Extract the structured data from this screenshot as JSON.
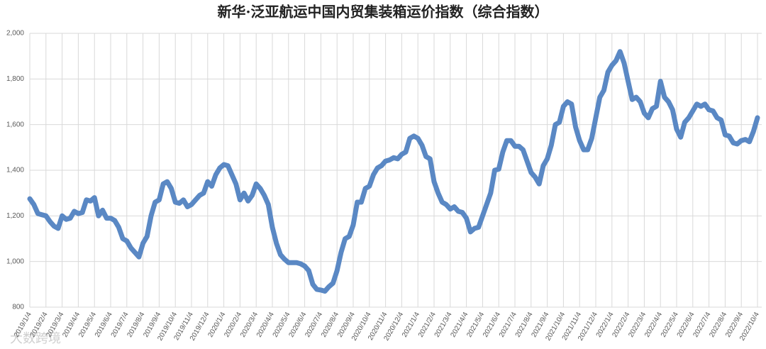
{
  "chart_data": {
    "type": "line",
    "title": "新华·泛亚航运中国内贸集装箱运价指数（综合指数）",
    "watermark": "大数跨境",
    "categories": [
      "2019/1/4",
      null,
      null,
      null,
      "2019/2/4",
      null,
      null,
      null,
      "2019/3/4",
      null,
      null,
      null,
      "2019/4/4",
      null,
      null,
      null,
      "2019/5/4",
      null,
      null,
      null,
      "2019/6/4",
      null,
      null,
      null,
      "2019/7/4",
      null,
      null,
      null,
      "2019/8/4",
      null,
      null,
      null,
      "2019/9/4",
      null,
      null,
      null,
      "2019/10/4",
      null,
      null,
      null,
      "2019/11/4",
      null,
      null,
      null,
      "2019/12/4",
      null,
      null,
      null,
      "2020/1/4",
      null,
      null,
      null,
      "2020/2/4",
      null,
      null,
      null,
      "2020/3/4",
      null,
      null,
      null,
      "2020/4/4",
      null,
      null,
      null,
      "2020/5/4",
      null,
      null,
      null,
      "2020/6/4",
      null,
      null,
      null,
      "2020/7/4",
      null,
      null,
      null,
      "2020/8/4",
      null,
      null,
      null,
      "2020/9/4",
      null,
      null,
      null,
      "2020/10/4",
      null,
      null,
      null,
      "2020/11/4",
      null,
      null,
      null,
      "2020/12/4",
      null,
      null,
      null,
      "2021/1/4",
      null,
      null,
      null,
      "2021/2/4",
      null,
      null,
      null,
      "2021/3/4",
      null,
      null,
      null,
      "2021/4/4",
      null,
      null,
      null,
      "2021/5/4",
      null,
      null,
      null,
      "2021/6/4",
      null,
      null,
      null,
      "2021/7/4",
      null,
      null,
      null,
      "2021/8/4",
      null,
      null,
      null,
      "2021/9/4",
      null,
      null,
      null,
      "2021/10/4",
      null,
      null,
      null,
      "2021/11/4",
      null,
      null,
      null,
      "2021/12/4",
      null,
      null,
      null,
      "2022/1/4",
      null,
      null,
      null,
      "2022/2/4",
      null,
      null,
      null,
      "2022/3/4",
      null,
      null,
      null,
      "2022/4/4",
      null,
      null,
      null,
      "2022/5/4",
      null,
      null,
      null,
      "2022/6/4",
      null,
      null,
      null,
      "2022/7/4",
      null,
      null,
      null,
      "2022/8/4",
      null,
      null,
      null,
      "2022/9/4",
      null,
      null,
      null,
      "2022/10/4"
    ],
    "series": [
      {
        "name": "综合指数",
        "color": "#5a88c4",
        "values": [
          1275,
          1250,
          1210,
          1205,
          1200,
          1175,
          1155,
          1145,
          1200,
          1185,
          1190,
          1220,
          1210,
          1215,
          1270,
          1265,
          1280,
          1200,
          1225,
          1190,
          1190,
          1180,
          1150,
          1100,
          1090,
          1060,
          1040,
          1020,
          1080,
          1110,
          1200,
          1260,
          1270,
          1340,
          1350,
          1320,
          1260,
          1255,
          1270,
          1240,
          1250,
          1270,
          1290,
          1300,
          1350,
          1330,
          1380,
          1410,
          1425,
          1420,
          1380,
          1340,
          1270,
          1300,
          1265,
          1290,
          1340,
          1320,
          1290,
          1250,
          1150,
          1080,
          1030,
          1010,
          995,
          995,
          995,
          990,
          980,
          960,
          900,
          878,
          875,
          870,
          890,
          905,
          960,
          1040,
          1100,
          1110,
          1160,
          1260,
          1260,
          1320,
          1330,
          1380,
          1410,
          1420,
          1440,
          1445,
          1455,
          1450,
          1470,
          1480,
          1540,
          1550,
          1540,
          1510,
          1460,
          1450,
          1350,
          1300,
          1260,
          1250,
          1230,
          1240,
          1220,
          1215,
          1190,
          1130,
          1145,
          1150,
          1200,
          1250,
          1300,
          1400,
          1405,
          1480,
          1530,
          1530,
          1505,
          1505,
          1490,
          1440,
          1390,
          1370,
          1340,
          1420,
          1450,
          1510,
          1600,
          1610,
          1680,
          1700,
          1690,
          1590,
          1530,
          1490,
          1490,
          1540,
          1630,
          1720,
          1750,
          1830,
          1860,
          1880,
          1920,
          1870,
          1790,
          1710,
          1720,
          1700,
          1650,
          1630,
          1670,
          1680,
          1790,
          1720,
          1700,
          1665,
          1580,
          1545,
          1610,
          1630,
          1660,
          1690,
          1680,
          1690,
          1665,
          1660,
          1630,
          1620,
          1555,
          1550,
          1520,
          1515,
          1530,
          1535,
          1525,
          1570,
          1630
        ]
      }
    ],
    "ylim": [
      800,
      2000
    ],
    "yticks": [
      800,
      {
        "value": 1000,
        "label": "1,000"
      },
      {
        "value": 1200,
        "label": "1,200"
      },
      {
        "value": 1400,
        "label": "1,400"
      },
      {
        "value": 1600,
        "label": "1,600"
      },
      {
        "value": 1800,
        "label": "1,800"
      },
      {
        "value": 2000,
        "label": "2,000"
      }
    ],
    "grid": true
  }
}
